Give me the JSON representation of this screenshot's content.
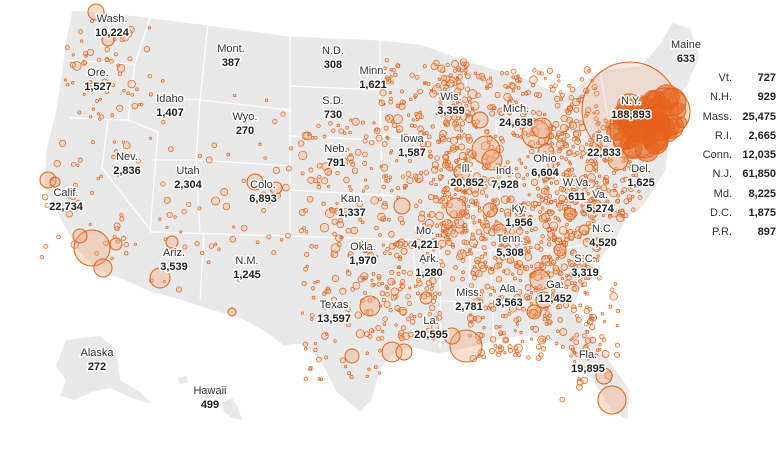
{
  "colors": {
    "land": "#e9e9e9",
    "borders": "#ffffff",
    "bubble_stroke": "#e0631d",
    "bubble_fill": "#f4a675",
    "dense_fill": "#e8601a"
  },
  "states": [
    {
      "id": "wa",
      "name": "Wash.",
      "value": "10,224"
    },
    {
      "id": "or",
      "name": "Ore.",
      "value": "1,527"
    },
    {
      "id": "ca",
      "name": "Calif.",
      "value": "22,734"
    },
    {
      "id": "nv",
      "name": "Nev.",
      "value": "2,836"
    },
    {
      "id": "id",
      "name": "Idaho",
      "value": "1,407"
    },
    {
      "id": "mt",
      "name": "Mont.",
      "value": "387"
    },
    {
      "id": "wy",
      "name": "Wyo.",
      "value": "270"
    },
    {
      "id": "ut",
      "name": "Utah",
      "value": "2,304"
    },
    {
      "id": "co",
      "name": "Colo.",
      "value": "6,893"
    },
    {
      "id": "az",
      "name": "Ariz.",
      "value": "3,539"
    },
    {
      "id": "nm",
      "name": "N.M.",
      "value": "1,245"
    },
    {
      "id": "nd",
      "name": "N.D.",
      "value": "308"
    },
    {
      "id": "sd",
      "name": "S.D.",
      "value": "730"
    },
    {
      "id": "ne",
      "name": "Neb.",
      "value": "791"
    },
    {
      "id": "ks",
      "name": "Kan.",
      "value": "1,337"
    },
    {
      "id": "ok",
      "name": "Okla.",
      "value": "1,970"
    },
    {
      "id": "tx",
      "name": "Texas",
      "value": "13,597"
    },
    {
      "id": "mn",
      "name": "Minn.",
      "value": "1,621"
    },
    {
      "id": "ia",
      "name": "Iowa",
      "value": "1,587"
    },
    {
      "id": "mo",
      "name": "Mo.",
      "value": "4,221"
    },
    {
      "id": "ar",
      "name": "Ark.",
      "value": "1,280"
    },
    {
      "id": "la",
      "name": "La.",
      "value": "20,595"
    },
    {
      "id": "wi",
      "name": "Wis.",
      "value": "3,359"
    },
    {
      "id": "il",
      "name": "Ill.",
      "value": "20,852"
    },
    {
      "id": "mi",
      "name": "Mich.",
      "value": "24,638"
    },
    {
      "id": "in",
      "name": "Ind.",
      "value": "7,928"
    },
    {
      "id": "oh",
      "name": "Ohio",
      "value": "6,604"
    },
    {
      "id": "ky",
      "name": "Ky.",
      "value": "1,956"
    },
    {
      "id": "tn",
      "name": "Tenn.",
      "value": "5,308"
    },
    {
      "id": "ms",
      "name": "Miss.",
      "value": "2,781"
    },
    {
      "id": "al",
      "name": "Ala.",
      "value": "3,563"
    },
    {
      "id": "ga",
      "name": "Ga.",
      "value": "12,452"
    },
    {
      "id": "fl",
      "name": "Fla.",
      "value": "19,895"
    },
    {
      "id": "sc",
      "name": "S.C.",
      "value": "3,319"
    },
    {
      "id": "nc",
      "name": "N.C.",
      "value": "4,520"
    },
    {
      "id": "va",
      "name": "Va.",
      "value": "5,274"
    },
    {
      "id": "wv",
      "name": "W.Va.",
      "value": "611"
    },
    {
      "id": "pa",
      "name": "Pa.",
      "value": "22,833"
    },
    {
      "id": "ny",
      "name": "N.Y.",
      "value": "188,893"
    },
    {
      "id": "de",
      "name": "Del.",
      "value": "1,625"
    },
    {
      "id": "me",
      "name": "Maine",
      "value": "633"
    },
    {
      "id": "ak",
      "name": "Alaska",
      "value": "272"
    },
    {
      "id": "hi",
      "name": "Hawaii",
      "value": "499"
    }
  ],
  "side_list": [
    {
      "name": "Vt.",
      "value": "727"
    },
    {
      "name": "N.H.",
      "value": "929"
    },
    {
      "name": "Mass.",
      "value": "25,475"
    },
    {
      "name": "R.I.",
      "value": "2,665"
    },
    {
      "name": "Conn.",
      "value": "12,035"
    },
    {
      "name": "N.J.",
      "value": "61,850"
    },
    {
      "name": "Md.",
      "value": "8,225"
    },
    {
      "name": "D.C.",
      "value": "1,875"
    },
    {
      "name": "P.R.",
      "value": "897"
    }
  ]
}
